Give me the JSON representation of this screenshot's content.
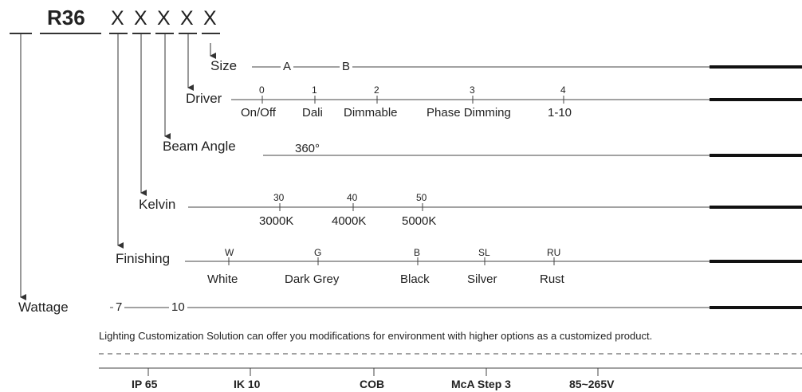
{
  "part_number": {
    "prefix_blank": "",
    "model": "R36",
    "placeholders": [
      "X",
      "X",
      "X",
      "X",
      "X"
    ]
  },
  "rows": {
    "size": {
      "label": "Size",
      "options": [
        {
          "name": "A"
        },
        {
          "name": "B"
        }
      ]
    },
    "driver": {
      "label": "Driver",
      "options": [
        {
          "code": "0",
          "name": "On/Off"
        },
        {
          "code": "1",
          "name": "Dali"
        },
        {
          "code": "2",
          "name": "Dimmable"
        },
        {
          "code": "3",
          "name": "Phase Dimming"
        },
        {
          "code": "4",
          "name": "1-10"
        }
      ]
    },
    "beam_angle": {
      "label": "Beam Angle",
      "options": [
        {
          "name": "360°"
        }
      ]
    },
    "kelvin": {
      "label": "Kelvin",
      "options": [
        {
          "code": "30",
          "name": "3000K"
        },
        {
          "code": "40",
          "name": "4000K"
        },
        {
          "code": "50",
          "name": "5000K"
        }
      ]
    },
    "finishing": {
      "label": "Finishing",
      "options": [
        {
          "code": "W",
          "name": "White"
        },
        {
          "code": "G",
          "name": "Dark Grey"
        },
        {
          "code": "B",
          "name": "Black"
        },
        {
          "code": "SL",
          "name": "Silver"
        },
        {
          "code": "RU",
          "name": "Rust"
        }
      ]
    },
    "wattage": {
      "label": "Wattage",
      "options": [
        {
          "name": "7"
        },
        {
          "name": "10"
        }
      ]
    }
  },
  "note": "Lighting Customization Solution can offer you modifications for environment with higher options as a customized product.",
  "specs": [
    "IP 65",
    "IK 10",
    "COB",
    "McA Step 3",
    "85~265V"
  ]
}
